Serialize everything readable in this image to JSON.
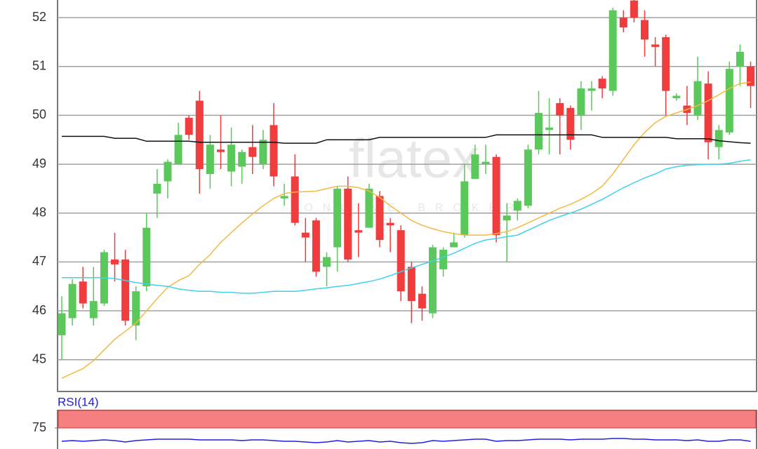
{
  "watermark": {
    "logo": "flatex",
    "tagline": "ONLINE BROKER"
  },
  "chart_data": [
    {
      "type": "candlestick",
      "up_color": "#5ac85a",
      "down_color": "#f03c3c",
      "open": [
        45.5,
        45.85,
        46.6,
        45.85,
        46.15,
        47.05,
        47.05,
        45.7,
        46.5,
        48.4,
        48.65,
        49.0,
        49.95,
        50.3,
        48.8,
        49.3,
        48.85,
        48.95,
        49.35,
        49.0,
        49.8,
        48.3,
        48.75,
        47.6,
        47.85,
        46.9,
        47.3,
        48.5,
        47.65,
        47.7,
        48.35,
        47.8,
        47.65,
        46.9,
        46.35,
        45.95,
        46.85,
        47.3,
        47.55,
        48.7,
        49.0,
        49.15,
        47.85,
        48.05,
        48.15,
        49.3,
        49.7,
        50.25,
        50.15,
        50.0,
        50.5,
        50.75,
        50.5,
        52.0,
        52.35,
        51.95,
        51.45,
        51.6,
        50.35,
        50.2,
        50.0,
        50.65,
        49.35,
        49.65,
        51.0,
        51.0
      ],
      "high": [
        46.3,
        46.65,
        46.9,
        46.9,
        47.25,
        47.6,
        47.25,
        46.5,
        48.0,
        48.9,
        49.1,
        49.85,
        50.0,
        50.5,
        49.6,
        50.0,
        49.75,
        49.3,
        49.8,
        49.7,
        50.25,
        48.6,
        49.2,
        47.9,
        47.9,
        47.2,
        48.55,
        48.75,
        48.2,
        48.6,
        48.45,
        47.9,
        47.75,
        47.0,
        46.5,
        47.35,
        47.3,
        47.6,
        49.0,
        49.4,
        49.4,
        49.2,
        48.2,
        48.3,
        49.4,
        50.5,
        50.35,
        50.35,
        50.2,
        50.7,
        50.7,
        50.8,
        52.2,
        52.15,
        52.5,
        52.15,
        51.6,
        51.65,
        50.45,
        50.6,
        51.2,
        50.9,
        49.8,
        51.1,
        51.45,
        51.1
      ],
      "low": [
        45.0,
        45.7,
        46.05,
        45.7,
        46.1,
        46.6,
        45.7,
        45.4,
        46.4,
        47.9,
        48.3,
        49.0,
        49.5,
        48.4,
        48.5,
        48.9,
        48.55,
        48.6,
        48.8,
        48.9,
        48.55,
        48.15,
        47.75,
        47.0,
        46.7,
        46.5,
        46.8,
        47.0,
        47.1,
        47.7,
        47.3,
        47.2,
        46.2,
        45.75,
        45.8,
        45.85,
        46.7,
        47.3,
        47.5,
        48.7,
        48.8,
        47.4,
        47.0,
        47.85,
        48.1,
        49.2,
        49.2,
        49.2,
        49.3,
        49.7,
        50.1,
        50.35,
        50.4,
        51.7,
        51.9,
        51.2,
        51.0,
        50.0,
        50.3,
        49.8,
        49.9,
        49.1,
        49.1,
        49.6,
        50.6,
        50.15
      ],
      "close": [
        45.95,
        46.55,
        46.15,
        46.2,
        47.2,
        46.95,
        45.8,
        46.4,
        47.7,
        48.6,
        49.05,
        49.6,
        49.6,
        48.9,
        49.4,
        49.25,
        49.4,
        49.25,
        49.15,
        49.5,
        48.75,
        48.35,
        47.8,
        47.5,
        46.8,
        47.1,
        48.5,
        47.05,
        47.6,
        48.5,
        47.45,
        47.75,
        46.4,
        46.2,
        46.05,
        47.3,
        47.25,
        47.4,
        48.65,
        49.2,
        49.05,
        47.55,
        47.95,
        48.25,
        49.3,
        50.05,
        49.75,
        50.0,
        49.5,
        50.55,
        50.55,
        50.55,
        52.15,
        51.8,
        52.0,
        51.55,
        51.4,
        50.5,
        50.4,
        50.05,
        50.7,
        49.45,
        49.7,
        50.95,
        51.3,
        50.6
      ],
      "series": [
        {
          "color": "#f5b942",
          "values": [
            44.62,
            44.72,
            44.82,
            44.98,
            45.2,
            45.42,
            45.58,
            45.75,
            46.0,
            46.25,
            46.48,
            46.62,
            46.72,
            46.95,
            47.15,
            47.4,
            47.6,
            47.8,
            47.98,
            48.15,
            48.3,
            48.4,
            48.43,
            48.44,
            48.45,
            48.5,
            48.55,
            48.55,
            48.52,
            48.45,
            48.32,
            48.15,
            48.0,
            47.85,
            47.75,
            47.68,
            47.62,
            47.58,
            47.55,
            47.55,
            47.55,
            47.58,
            47.62,
            47.7,
            47.8,
            47.9,
            48.0,
            48.1,
            48.18,
            48.28,
            48.4,
            48.55,
            48.8,
            49.1,
            49.4,
            49.65,
            49.85,
            49.98,
            50.05,
            50.12,
            50.2,
            50.3,
            50.42,
            50.55,
            50.65,
            50.68
          ]
        },
        {
          "color": "#40d0f0",
          "values": [
            46.68,
            46.68,
            46.68,
            46.68,
            46.68,
            46.66,
            46.62,
            46.58,
            46.55,
            46.52,
            46.5,
            46.45,
            46.42,
            46.4,
            46.4,
            46.38,
            46.38,
            46.36,
            46.36,
            46.38,
            46.4,
            46.4,
            46.4,
            46.42,
            46.45,
            46.47,
            46.5,
            46.52,
            46.56,
            46.6,
            46.65,
            46.72,
            46.8,
            46.88,
            46.95,
            47.02,
            47.1,
            47.18,
            47.28,
            47.38,
            47.45,
            47.48,
            47.52,
            47.55,
            47.65,
            47.75,
            47.85,
            47.93,
            48.0,
            48.08,
            48.18,
            48.28,
            48.4,
            48.52,
            48.62,
            48.72,
            48.8,
            48.9,
            48.95,
            48.98,
            48.99,
            49.0,
            49.0,
            49.02,
            49.06,
            49.09
          ]
        },
        {
          "color": "#111111",
          "values": [
            49.57,
            49.57,
            49.57,
            49.57,
            49.57,
            49.53,
            49.53,
            49.53,
            49.47,
            49.47,
            49.47,
            49.47,
            49.47,
            49.45,
            49.45,
            49.45,
            49.45,
            49.45,
            49.45,
            49.45,
            49.45,
            49.43,
            49.43,
            49.43,
            49.43,
            49.5,
            49.5,
            49.5,
            49.5,
            49.5,
            49.55,
            49.55,
            49.55,
            49.55,
            49.55,
            49.55,
            49.55,
            49.55,
            49.55,
            49.55,
            49.55,
            49.6,
            49.6,
            49.6,
            49.6,
            49.6,
            49.6,
            49.6,
            49.6,
            49.6,
            49.6,
            49.55,
            49.55,
            49.55,
            49.55,
            49.55,
            49.55,
            49.55,
            49.52,
            49.52,
            49.52,
            49.52,
            49.48,
            49.46,
            49.44,
            49.43
          ]
        }
      ],
      "ylim": [
        44.35,
        52.36
      ],
      "yticks": [
        45,
        46,
        47,
        48,
        49,
        50,
        51,
        52
      ],
      "grid": true
    },
    {
      "type": "line",
      "title": "RSI(14)",
      "color": "#2020e0",
      "band": [
        75,
        100
      ],
      "band_color": "#f58080",
      "values": [
        56,
        57,
        56,
        57,
        58,
        57,
        55,
        57,
        58,
        59,
        59,
        59,
        59,
        58,
        58,
        58,
        58,
        57,
        58,
        58,
        57,
        56,
        56,
        55,
        54,
        55,
        57,
        55,
        56,
        57,
        55,
        56,
        54,
        53,
        54,
        57,
        56,
        57,
        58,
        59,
        59,
        56,
        57,
        57,
        58,
        59,
        59,
        59,
        58,
        59,
        59,
        59,
        60,
        60,
        59,
        59,
        58,
        58,
        58,
        57,
        58,
        56,
        56,
        58,
        58,
        56
      ],
      "ylim": [
        45,
        100
      ],
      "yticks": [
        75
      ]
    }
  ]
}
